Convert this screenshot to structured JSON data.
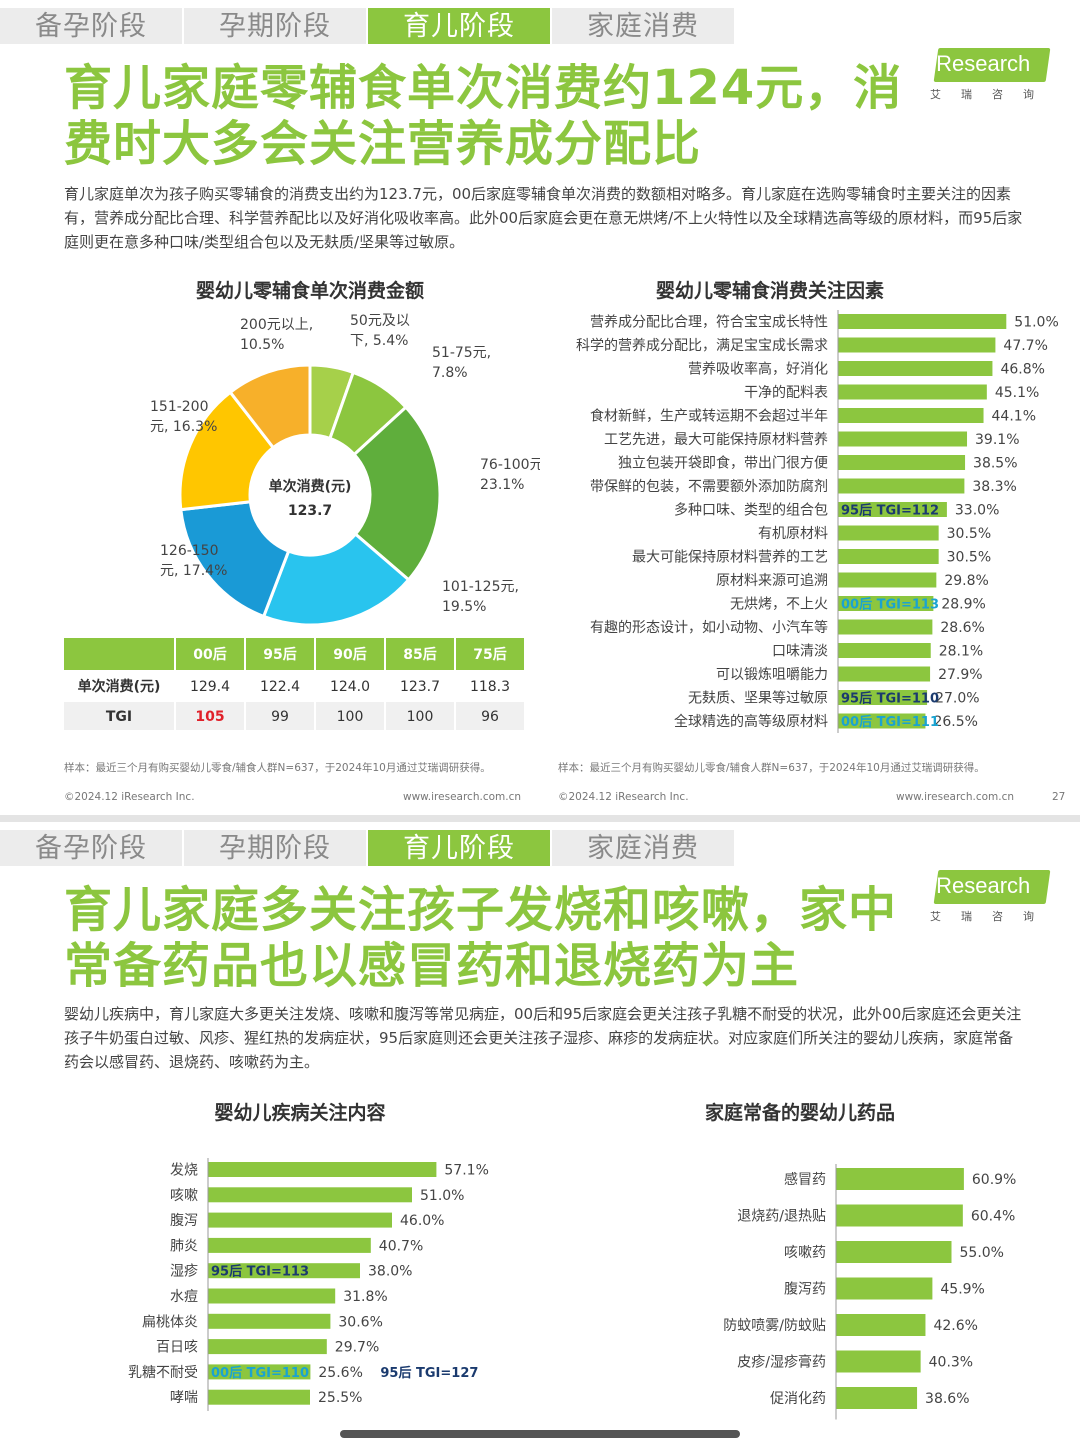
{
  "tabs": [
    "备孕阶段",
    "孕期阶段",
    "育儿阶段",
    "家庭消费"
  ],
  "active_tab": 2,
  "logo": {
    "text": "iResearch",
    "cn": "艾瑞咨询"
  },
  "slide1": {
    "title": "育儿家庭零辅食单次消费约124元，消费时大多会关注营养成分配比",
    "paragraph": "育儿家庭单次为孩子购买零辅食的消费支出约为123.7元，00后家庭零辅食单次消费的数额相对略多。育儿家庭在选购零辅食时主要关注的因素有，营养成分配比合理、科学营养配比以及好消化吸收率高。此外00后家庭会更在意无烘烤/不上火特性以及全球精选高等级的原材料，而95后家庭则更在意多种口味/类型组合包以及无麸质/坚果等过敏原。",
    "pie_title": "婴幼儿零辅食单次消费金额",
    "pie_center": {
      "label": "单次消费(元)",
      "value": "123.7"
    },
    "table": {
      "headers": [
        "",
        "00后",
        "95后",
        "90后",
        "85后",
        "75后"
      ],
      "rows": [
        [
          "单次消费(元)",
          "129.4",
          "122.4",
          "124.0",
          "123.7",
          "118.3"
        ],
        [
          "TGI",
          "105",
          "99",
          "100",
          "100",
          "96"
        ]
      ]
    },
    "bar_title": "婴幼儿零辅食消费关注因素",
    "sample_left": "样本：最近三个月有购买婴幼儿零食/辅食人群N=637，于2024年10月通过艾瑞调研获得。",
    "sample_right": "样本：最近三个月有购买婴幼儿零食/辅食人群N=637，于2024年10月通过艾瑞调研获得。",
    "copyright_left": "©2024.12 iResearch Inc.",
    "url_left": "www.iresearch.com.cn",
    "copyright_right": "©2024.12 iResearch Inc.",
    "url_right": "www.iresearch.com.cn",
    "page_num": "27"
  },
  "slide2": {
    "title": "育儿家庭多关注孩子发烧和咳嗽，家中常备药品也以感冒药和退烧药为主",
    "paragraph": "婴幼儿疾病中，育儿家庭大多更关注发烧、咳嗽和腹泻等常见病症，00后和95后家庭会更关注孩子乳糖不耐受的状况，此外00后家庭还会更关注孩子牛奶蛋白过敏、风疹、猩红热的发病症状，95后家庭则还会更关注孩子湿疹、麻疹的发病症状。对应家庭们所关注的婴幼儿疾病，家庭常备药会以感冒药、退烧药、咳嗽药为主。",
    "left_title": "婴幼儿疾病关注内容",
    "right_title": "家庭常备的婴幼儿药品"
  },
  "colors": {
    "green": "#8cc63f",
    "tab_grey": "#ececec",
    "tgi_red": "#e0212a",
    "tgi_blue": "#1aa3d1"
  },
  "chart_data": [
    {
      "type": "pie",
      "title": "婴幼儿零辅食单次消费金额",
      "labels": [
        "50元及以下",
        "51-75元",
        "76-100元",
        "101-125元",
        "126-150元",
        "151-200元",
        "200元以上"
      ],
      "values": [
        5.4,
        7.8,
        23.1,
        19.5,
        17.4,
        16.3,
        10.5
      ],
      "slice_labels": [
        "50元及以\n下, 5.4%",
        "51-75元,\n7.8%",
        "76-100元,\n23.1%",
        "101-125元,\n19.5%",
        "126-150\n元, 17.4%",
        "151-200\n元, 16.3%",
        "200元以上,\n10.5%"
      ],
      "colors": [
        "#a6d04a",
        "#8cc63f",
        "#5fae3c",
        "#29c4ee",
        "#1a9ad6",
        "#ffc600",
        "#f7b02a"
      ]
    },
    {
      "type": "bar",
      "title": "婴幼儿零辅食消费关注因素",
      "categories": [
        "营养成分配比合理，符合宝宝成长特性",
        "科学的营养成分配比，满足宝宝成长需求",
        "营养吸收率高，好消化",
        "干净的配料表",
        "食材新鲜，生产或转运期不会超过半年",
        "工艺先进，最大可能保持原材料营养",
        "独立包装开袋即食，带出门很方便",
        "带保鲜的包装，不需要额外添加防腐剂",
        "多种口味、类型的组合包",
        "有机原材料",
        "最大可能保持原材料营养的工艺",
        "原材料来源可追溯",
        "无烘烤，不上火",
        "有趣的形态设计，如小动物、小汽车等",
        "口味清淡",
        "可以锻炼咀嚼能力",
        "无麸质、坚果等过敏原",
        "全球精选的高等级原材料"
      ],
      "values": [
        51.0,
        47.7,
        46.8,
        45.1,
        44.1,
        39.1,
        38.5,
        38.3,
        33.0,
        30.5,
        30.5,
        29.8,
        28.9,
        28.6,
        28.1,
        27.9,
        27.0,
        26.5
      ],
      "value_labels": [
        "51.0%",
        "47.7%",
        "46.8%",
        "45.1%",
        "44.1%",
        "39.1%",
        "38.5%",
        "38.3%",
        "33.0%",
        "30.5%",
        "30.5%",
        "29.8%",
        "28.9%",
        "28.6%",
        "28.1%",
        "27.9%",
        "27.0%",
        "26.5%"
      ],
      "annotations": {
        "8": {
          "text": "95后 TGI=112",
          "color": "#1a3a6e"
        },
        "12": {
          "text": "00后 TGI=113",
          "color": "#1aa3d1"
        },
        "16": {
          "text": "95后 TGI=110",
          "color": "#1a3a6e"
        },
        "17": {
          "text": "00后 TGI=111",
          "color": "#1aa3d1"
        }
      }
    },
    {
      "type": "bar",
      "title": "婴幼儿疾病关注内容",
      "categories": [
        "发烧",
        "咳嗽",
        "腹泻",
        "肺炎",
        "湿疹",
        "水痘",
        "扁桃体炎",
        "百日咳",
        "乳糖不耐受",
        "哮喘"
      ],
      "values": [
        57.1,
        51.0,
        46.0,
        40.7,
        38.0,
        31.8,
        30.6,
        29.7,
        25.6,
        25.5
      ],
      "value_labels": [
        "57.1%",
        "51.0%",
        "46.0%",
        "40.7%",
        "38.0%",
        "31.8%",
        "30.6%",
        "29.7%",
        "25.6%",
        "25.5%"
      ],
      "annotations": {
        "4": {
          "text": "95后 TGI=113",
          "color": "#1a3a6e"
        },
        "8": {
          "text": "00后 TGI=110",
          "color": "#1aa3d1"
        }
      },
      "extra_annotation": {
        "index": 8,
        "text": "95后 TGI=127",
        "color": "#1a3a6e"
      }
    },
    {
      "type": "bar",
      "title": "家庭常备的婴幼儿药品",
      "categories": [
        "感冒药",
        "退烧药/退热贴",
        "咳嗽药",
        "腹泻药",
        "防蚊喷雾/防蚊贴",
        "皮疹/湿疹膏药",
        "促消化药"
      ],
      "values": [
        60.9,
        60.4,
        55.0,
        45.9,
        42.6,
        40.3,
        38.6
      ],
      "value_labels": [
        "60.9%",
        "60.4%",
        "55.0%",
        "45.9%",
        "42.6%",
        "40.3%",
        "38.6%"
      ]
    }
  ]
}
